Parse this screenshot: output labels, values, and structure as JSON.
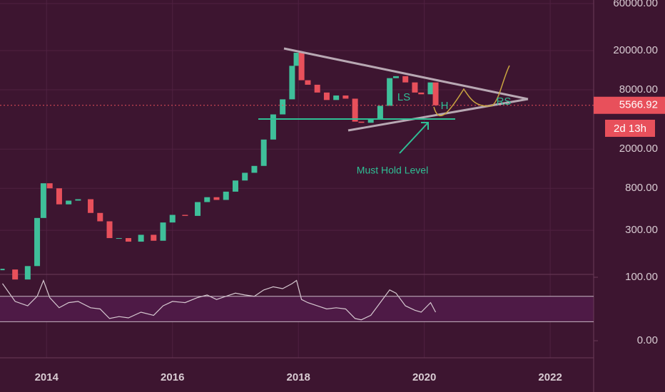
{
  "chart_data": [
    {
      "type": "candlestick",
      "x": [
        2013.3,
        2013.5,
        2013.7,
        2013.85,
        2013.95,
        2014.05,
        2014.2,
        2014.35,
        2014.5,
        2014.7,
        2014.85,
        2015.0,
        2015.15,
        2015.3,
        2015.5,
        2015.7,
        2015.85,
        2016.0,
        2016.2,
        2016.4,
        2016.55,
        2016.7,
        2016.85,
        2017.0,
        2017.15,
        2017.3,
        2017.45,
        2017.6,
        2017.75,
        2017.9,
        2017.97,
        2018.05,
        2018.15,
        2018.3,
        2018.45,
        2018.6,
        2018.75,
        2018.9,
        2019.0,
        2019.15,
        2019.3,
        2019.45,
        2019.55,
        2019.7,
        2019.85,
        2019.95,
        2020.1,
        2020.18
      ],
      "values": [
        120,
        95,
        130,
        400,
        900,
        800,
        550,
        600,
        620,
        450,
        370,
        250,
        250,
        230,
        270,
        235,
        360,
        430,
        420,
        580,
        650,
        610,
        740,
        960,
        1150,
        1350,
        2500,
        4500,
        6400,
        14000,
        19000,
        10000,
        9000,
        7500,
        6300,
        7000,
        6500,
        3800,
        3700,
        4000,
        5500,
        10500,
        11000,
        9500,
        7500,
        7200,
        9500,
        5566.92
      ],
      "colors": {
        "up": "#3fbf9a",
        "down": "#e8505b"
      },
      "log_scale": true,
      "xlim": [
        2013.26,
        2022.69
      ],
      "xticks": [
        2014,
        2016,
        2018,
        2020,
        2022
      ],
      "ylim": [
        107,
        65200
      ],
      "yticks": [
        {
          "value": 60000,
          "label": "60000.00"
        },
        {
          "value": 20000,
          "label": "20000.00"
        },
        {
          "value": 8000,
          "label": "8000.00"
        },
        {
          "value": 2000,
          "label": "2000.00"
        },
        {
          "value": 800,
          "label": "800.00"
        },
        {
          "value": 300,
          "label": "300.00"
        }
      ],
      "last_price": 5566.92,
      "countdown": "2d 13h",
      "annotations": {
        "left_shoulder": "LS",
        "head": "H",
        "right_shoulder": "RS",
        "support": "Must Hold Level"
      }
    },
    {
      "type": "line",
      "x": [
        2013.3,
        2013.5,
        2013.7,
        2013.85,
        2013.95,
        2014.05,
        2014.2,
        2014.35,
        2014.5,
        2014.7,
        2014.85,
        2015.0,
        2015.15,
        2015.3,
        2015.5,
        2015.7,
        2015.85,
        2016.0,
        2016.2,
        2016.4,
        2016.55,
        2016.7,
        2016.85,
        2017.0,
        2017.15,
        2017.3,
        2017.45,
        2017.6,
        2017.75,
        2017.9,
        2017.97,
        2018.05,
        2018.15,
        2018.3,
        2018.45,
        2018.6,
        2018.75,
        2018.9,
        2019.0,
        2019.15,
        2019.3,
        2019.45,
        2019.55,
        2019.7,
        2019.85,
        2019.95,
        2020.1,
        2020.18
      ],
      "values": [
        90,
        62,
        55,
        70,
        95,
        68,
        52,
        60,
        62,
        52,
        50,
        35,
        38,
        36,
        45,
        40,
        55,
        62,
        60,
        68,
        72,
        65,
        70,
        75,
        72,
        70,
        80,
        85,
        82,
        90,
        95,
        65,
        60,
        55,
        50,
        52,
        50,
        35,
        33,
        40,
        60,
        80,
        75,
        55,
        48,
        45,
        60,
        45
      ],
      "color": "#d6c8d0",
      "bands": [
        30,
        70
      ],
      "ylim": [
        -19,
        104.5
      ],
      "yticks": [
        {
          "value": 100,
          "label": "100.00"
        },
        {
          "value": 0,
          "label": "0.00"
        }
      ]
    }
  ]
}
